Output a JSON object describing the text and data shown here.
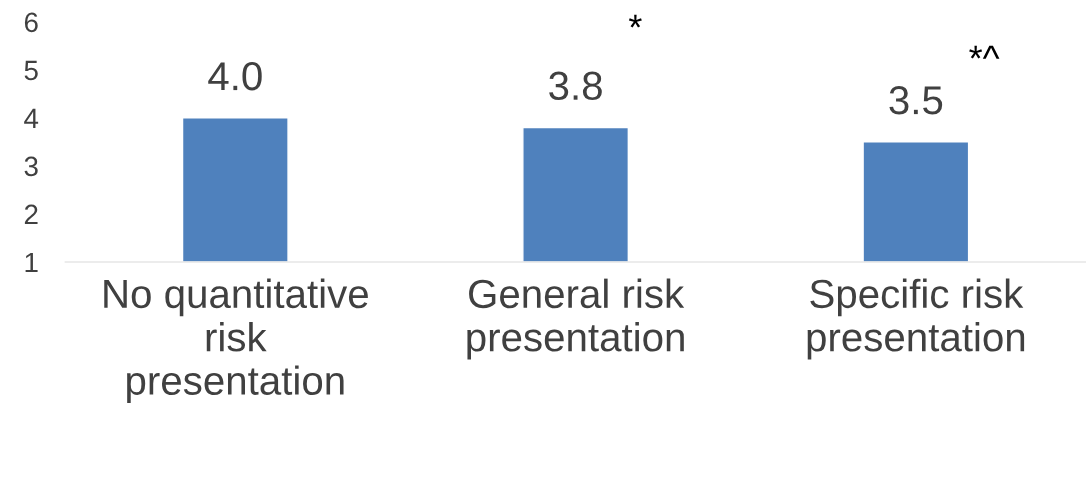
{
  "chart_data": {
    "type": "bar",
    "categories": [
      "No quantitative\nrisk\npresentation",
      "General risk\npresentation",
      "Specific risk\npresentation"
    ],
    "values": [
      4.0,
      3.8,
      3.5
    ],
    "value_labels": [
      "4.0",
      "3.8",
      "3.5"
    ],
    "color": "#4f81bd",
    "ylim": [
      1,
      6
    ],
    "yticks": [
      1,
      2,
      3,
      4,
      5,
      6
    ],
    "annotations": [
      "*",
      "*^"
    ],
    "grid": false,
    "legend": false
  }
}
